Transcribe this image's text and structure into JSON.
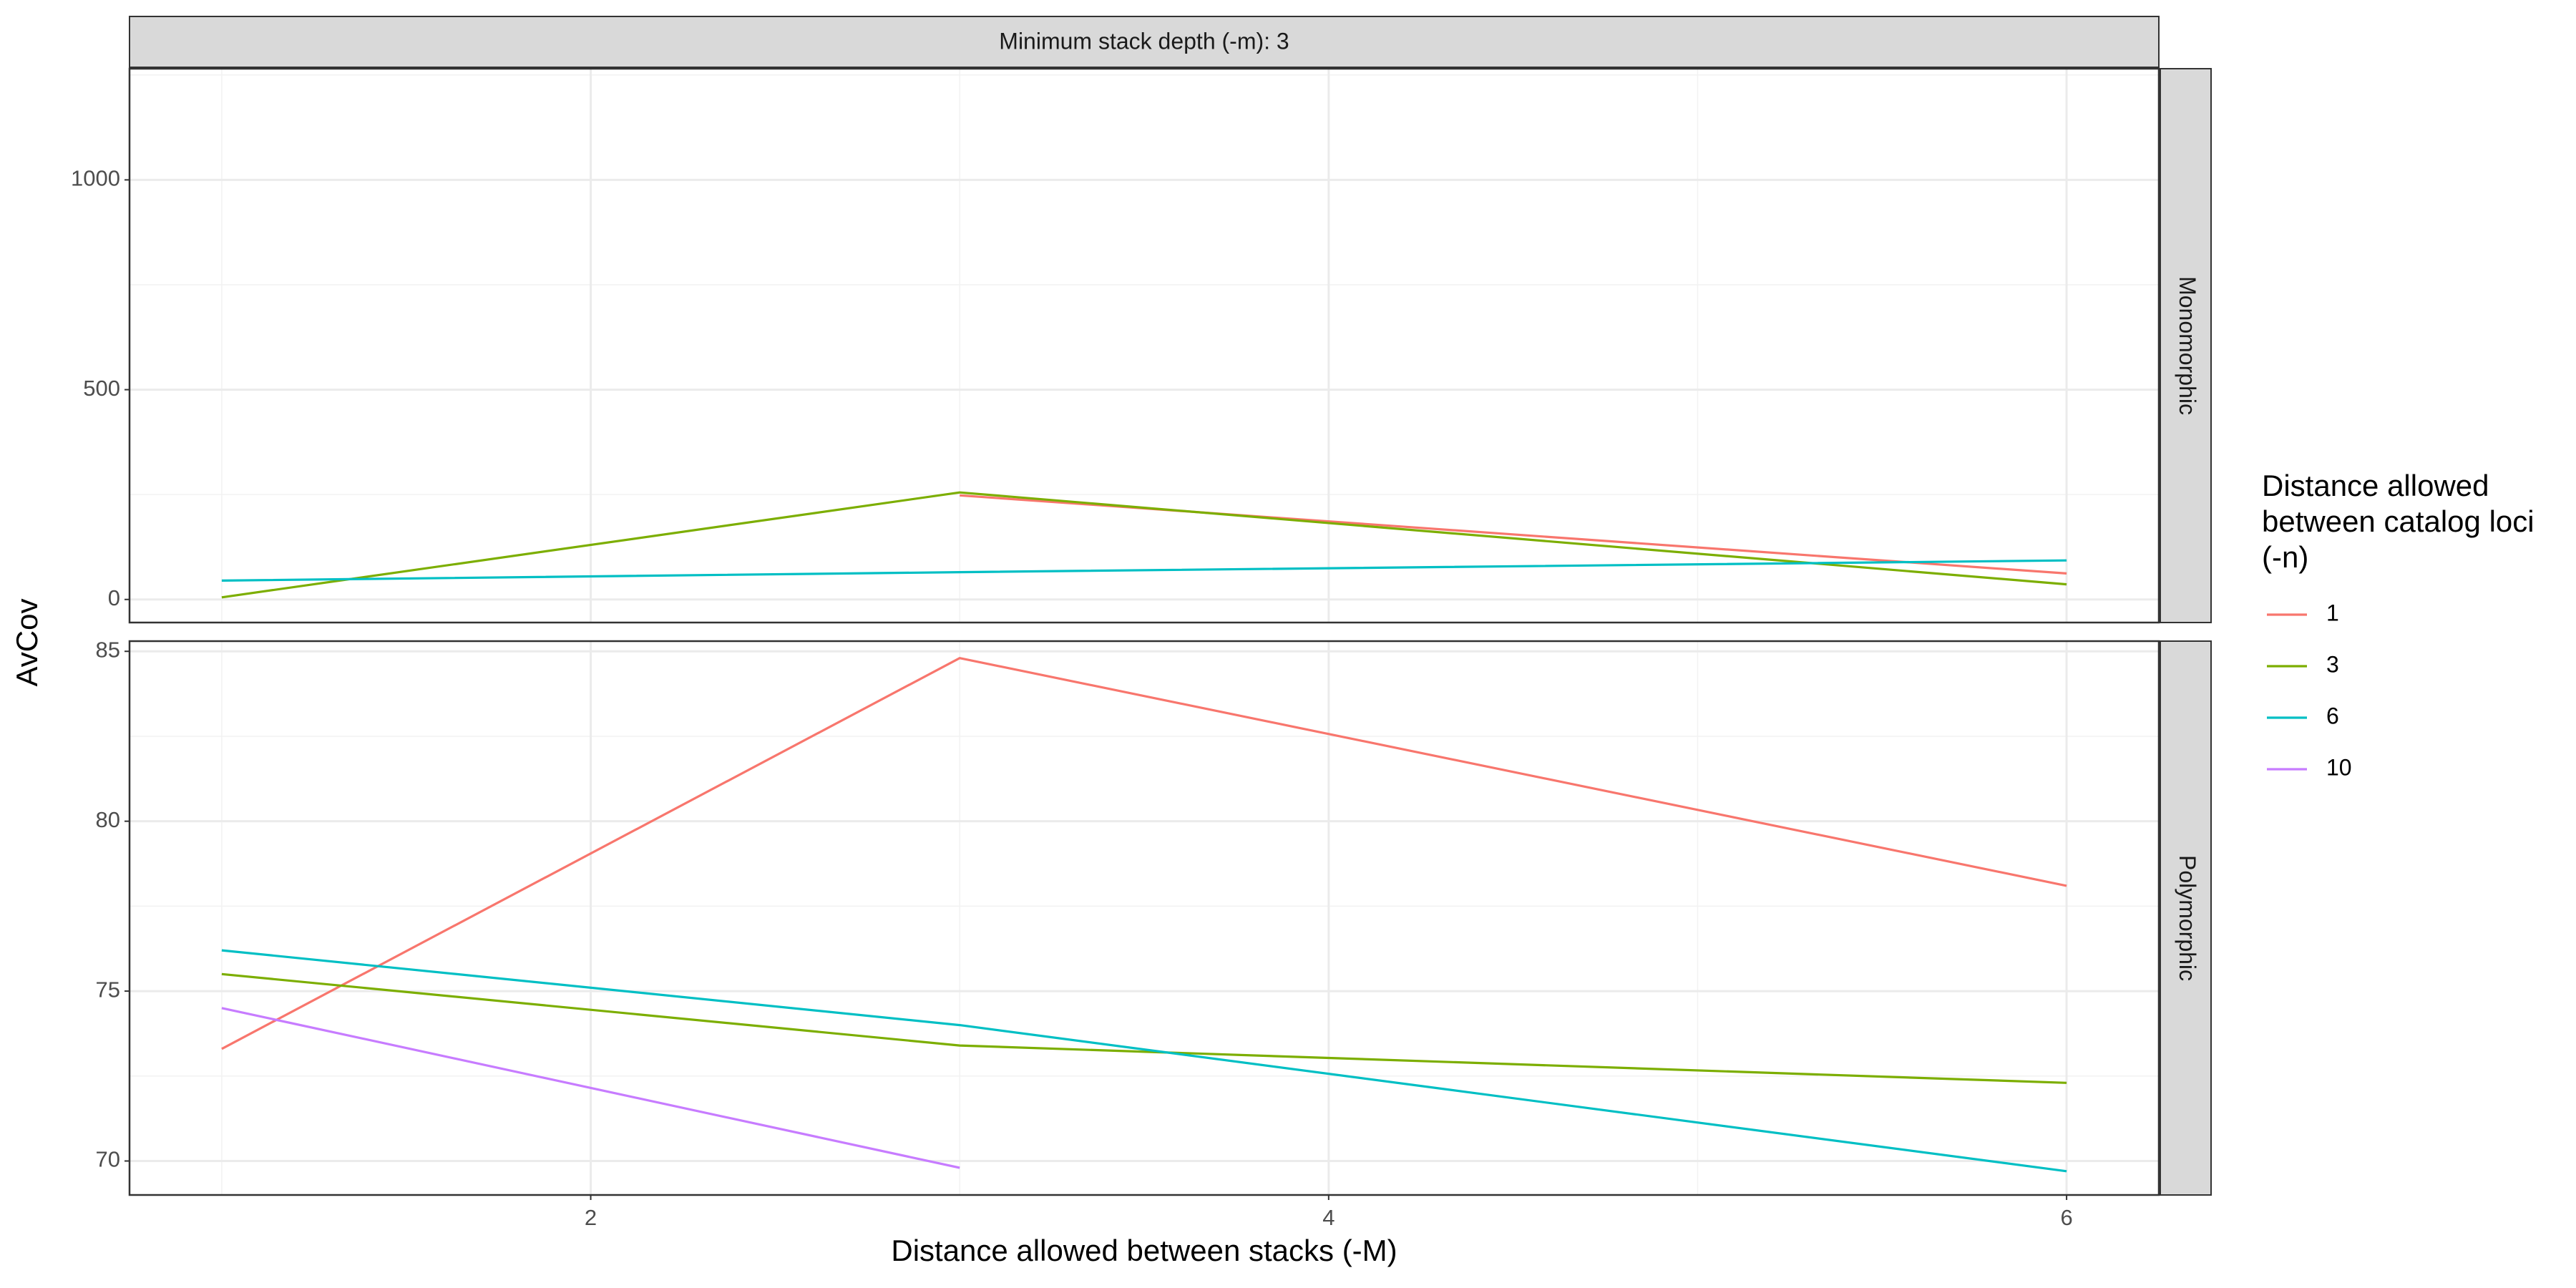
{
  "chart_data": {
    "type": "line",
    "facet_top_label": "Minimum stack depth (-m): 3",
    "xlabel": "Distance allowed between stacks (-M)",
    "ylabel": "AvCov",
    "x_ticks": [
      2,
      4,
      6
    ],
    "x_range": [
      0.75,
      6.25
    ],
    "legend": {
      "title_lines": [
        "Distance allowed",
        "between catalog loci",
        "(-n)"
      ],
      "placement": "right",
      "items": [
        {
          "label": "1",
          "color": "#F8766D"
        },
        {
          "label": "3",
          "color": "#7CAE00"
        },
        {
          "label": "6",
          "color": "#00BFC4"
        },
        {
          "label": "10",
          "color": "#C77CFF"
        }
      ]
    },
    "grid": true,
    "panels": [
      {
        "strip_label": "Monomorphic",
        "y_range": [
          -55,
          1265
        ],
        "y_ticks": [
          0,
          500,
          1000
        ],
        "series": [
          {
            "name": "1",
            "color": "#F8766D",
            "x": [
              3,
              6
            ],
            "y": [
              248,
              62
            ]
          },
          {
            "name": "3",
            "color": "#7CAE00",
            "x": [
              1,
              3,
              6
            ],
            "y": [
              5,
              255,
              36
            ]
          },
          {
            "name": "6",
            "color": "#00BFC4",
            "x": [
              1,
              3,
              6
            ],
            "y": [
              45,
              65,
              93
            ]
          }
        ]
      },
      {
        "strip_label": "Polymorphic",
        "y_range": [
          69,
          85.3
        ],
        "y_ticks": [
          70,
          75,
          80,
          85
        ],
        "series": [
          {
            "name": "1",
            "color": "#F8766D",
            "x": [
              1,
              3,
              6
            ],
            "y": [
              73.3,
              84.8,
              78.1
            ]
          },
          {
            "name": "3",
            "color": "#7CAE00",
            "x": [
              1,
              3,
              6
            ],
            "y": [
              75.5,
              73.4,
              72.3
            ]
          },
          {
            "name": "6",
            "color": "#00BFC4",
            "x": [
              1,
              3,
              6
            ],
            "y": [
              76.2,
              74.0,
              69.7
            ]
          },
          {
            "name": "10",
            "color": "#C77CFF",
            "x": [
              1,
              3
            ],
            "y": [
              74.5,
              69.8
            ]
          }
        ]
      }
    ]
  }
}
